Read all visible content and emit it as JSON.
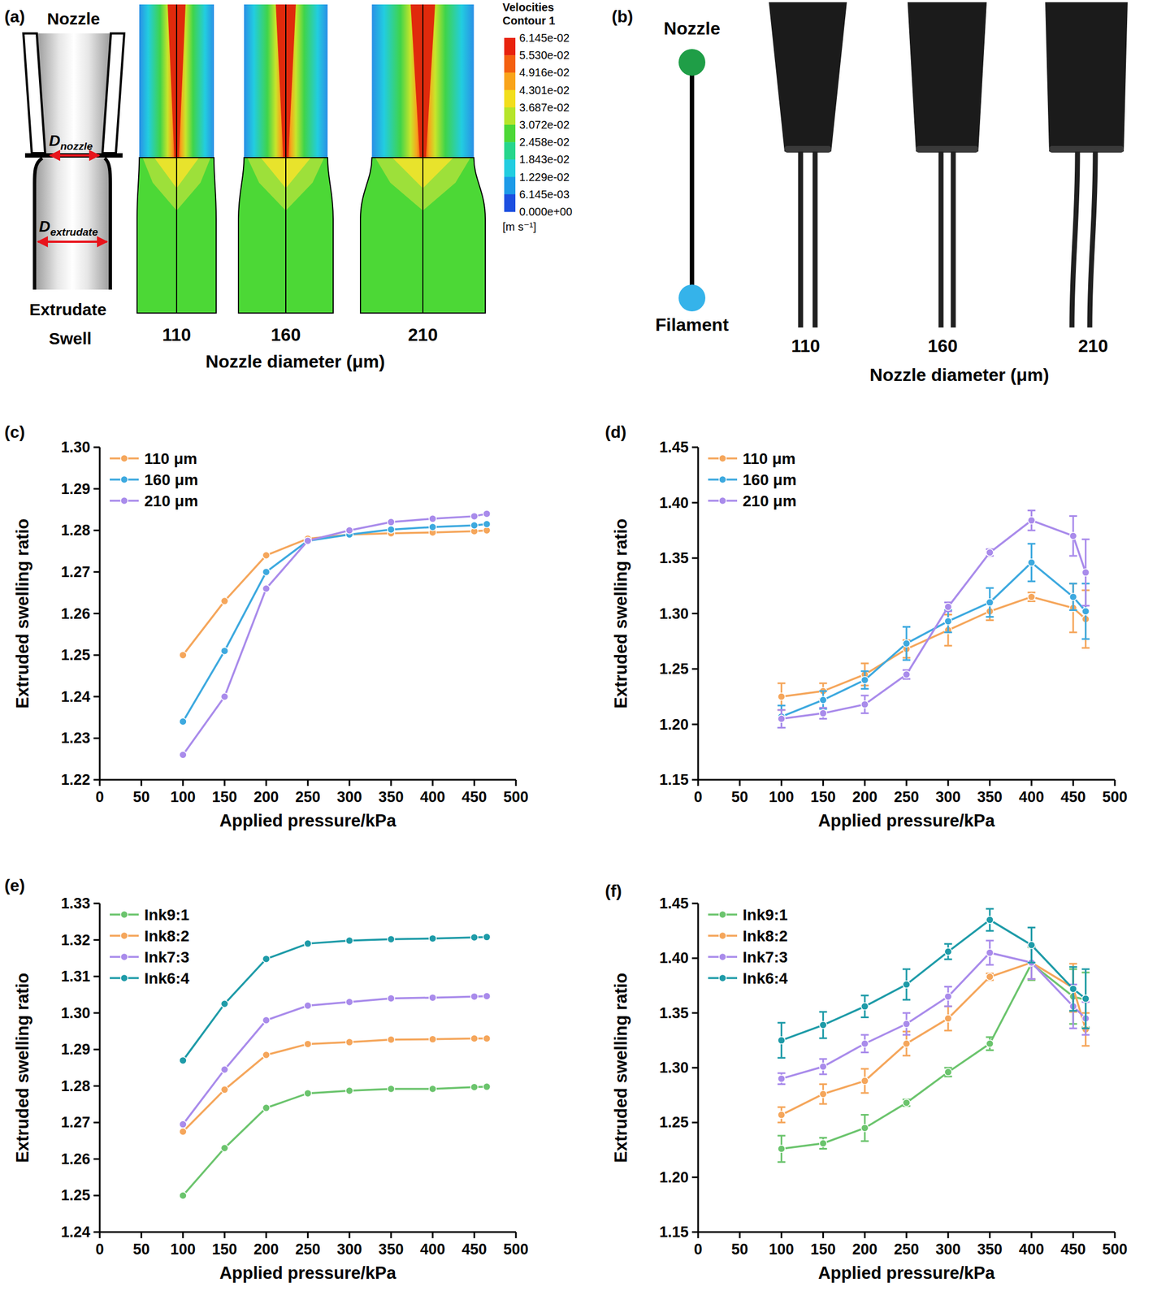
{
  "chart_data": [
    {
      "type": "line",
      "panel": "(c)",
      "x_label": "Applied pressure/kPa",
      "y_label": "Extruded swelling ratio",
      "x": [
        100,
        150,
        200,
        250,
        300,
        350,
        400,
        450,
        465
      ],
      "xlim": [
        0,
        500
      ],
      "xticks": [
        0,
        50,
        100,
        150,
        200,
        250,
        300,
        350,
        400,
        450,
        500
      ],
      "ylim": [
        1.22,
        1.3
      ],
      "yticks": [
        1.22,
        1.23,
        1.24,
        1.25,
        1.26,
        1.27,
        1.28,
        1.29,
        {
          "value": 1.3,
          "label": "1.30"
        }
      ],
      "grid": false,
      "legend": "upper left",
      "marker": "circle",
      "line_style": "solid",
      "series": [
        {
          "name": "110 μm",
          "color": "#f5a65b",
          "values": [
            1.25,
            1.263,
            1.274,
            1.278,
            1.279,
            1.2793,
            1.2795,
            1.2798,
            1.28
          ]
        },
        {
          "name": "160 μm",
          "color": "#3da9df",
          "values": [
            1.234,
            1.251,
            1.27,
            1.2775,
            1.279,
            1.2802,
            1.2808,
            1.2812,
            1.2815
          ]
        },
        {
          "name": "210 μm",
          "color": "#a98beb",
          "values": [
            1.226,
            1.24,
            1.266,
            1.2775,
            1.28,
            1.282,
            1.2828,
            1.2834,
            1.284
          ]
        }
      ]
    },
    {
      "type": "line",
      "panel": "(d)",
      "x_label": "Applied pressure/kPa",
      "y_label": "Extruded swelling ratio",
      "x": [
        100,
        150,
        200,
        250,
        300,
        350,
        400,
        450,
        465
      ],
      "xlim": [
        0,
        500
      ],
      "xticks": [
        0,
        50,
        100,
        150,
        200,
        250,
        300,
        350,
        400,
        450,
        500
      ],
      "ylim": [
        1.15,
        1.45
      ],
      "yticks": [
        1.15,
        {
          "value": 1.2,
          "label": "1.20"
        },
        1.25,
        {
          "value": 1.3,
          "label": "1.30"
        },
        1.35,
        {
          "value": 1.4,
          "label": "1.40"
        },
        1.45
      ],
      "grid": false,
      "legend": "upper left",
      "marker": "circle",
      "line_style": "solid",
      "series": [
        {
          "name": "110 μm",
          "color": "#f5a65b",
          "values": [
            1.225,
            1.23,
            1.245,
            1.268,
            1.285,
            1.302,
            1.315,
            1.305,
            1.295
          ],
          "errors": [
            0.012,
            0.007,
            0.01,
            0.008,
            0.014,
            0.008,
            0.004,
            0.022,
            0.026
          ]
        },
        {
          "name": "160 μm",
          "color": "#3da9df",
          "values": [
            1.207,
            1.222,
            1.24,
            1.273,
            1.293,
            1.31,
            1.346,
            1.315,
            1.302
          ],
          "errors": [
            0.01,
            0.008,
            0.008,
            0.015,
            0.01,
            0.013,
            0.017,
            0.012,
            0.025
          ]
        },
        {
          "name": "210 μm",
          "color": "#a98beb",
          "values": [
            1.205,
            1.21,
            1.218,
            1.245,
            1.306,
            1.355,
            1.384,
            1.37,
            1.337
          ],
          "errors": [
            0.008,
            0.005,
            0.008,
            0.004,
            0.004,
            0.003,
            0.009,
            0.018,
            0.03
          ]
        }
      ]
    },
    {
      "type": "line",
      "panel": "(e)",
      "x_label": "Applied pressure/kPa",
      "y_label": "Extruded swelling ratio",
      "x": [
        100,
        150,
        200,
        250,
        300,
        350,
        400,
        450,
        465
      ],
      "xlim": [
        0,
        500
      ],
      "xticks": [
        0,
        50,
        100,
        150,
        200,
        250,
        300,
        350,
        400,
        450,
        500
      ],
      "ylim": [
        1.24,
        1.33
      ],
      "yticks": [
        1.24,
        1.25,
        1.26,
        1.27,
        1.28,
        1.29,
        {
          "value": 1.3,
          "label": "1.30"
        },
        1.31,
        1.32,
        1.33
      ],
      "grid": false,
      "legend": "upper left",
      "marker": "circle",
      "line_style": "solid",
      "series": [
        {
          "name": "Ink9:1",
          "color": "#6bc46d",
          "values": [
            1.25,
            1.263,
            1.274,
            1.278,
            1.2787,
            1.2792,
            1.2792,
            1.2797,
            1.2798
          ]
        },
        {
          "name": "Ink8:2",
          "color": "#f5a65b",
          "values": [
            1.2675,
            1.279,
            1.2885,
            1.2915,
            1.292,
            1.2927,
            1.2928,
            1.293,
            1.293
          ]
        },
        {
          "name": "Ink7:3",
          "color": "#a98beb",
          "values": [
            1.2695,
            1.2845,
            1.298,
            1.302,
            1.303,
            1.304,
            1.3042,
            1.3045,
            1.3046
          ]
        },
        {
          "name": "Ink6:4",
          "color": "#1e9ba8",
          "values": [
            1.287,
            1.3025,
            1.3148,
            1.319,
            1.3198,
            1.3202,
            1.3204,
            1.3207,
            1.3208
          ]
        }
      ]
    },
    {
      "type": "line",
      "panel": "(f)",
      "x_label": "Applied pressure/kPa",
      "y_label": "Extruded swelling ratio",
      "x": [
        100,
        150,
        200,
        250,
        300,
        350,
        400,
        450,
        465
      ],
      "xlim": [
        0,
        500
      ],
      "xticks": [
        0,
        50,
        100,
        150,
        200,
        250,
        300,
        350,
        400,
        450,
        500
      ],
      "ylim": [
        1.15,
        1.45
      ],
      "yticks": [
        1.15,
        {
          "value": 1.2,
          "label": "1.20"
        },
        1.25,
        {
          "value": 1.3,
          "label": "1.30"
        },
        1.35,
        {
          "value": 1.4,
          "label": "1.40"
        },
        1.45
      ],
      "grid": false,
      "legend": "upper left",
      "marker": "circle",
      "line_style": "solid",
      "series": [
        {
          "name": "Ink9:1",
          "color": "#6bc46d",
          "values": [
            1.226,
            1.231,
            1.245,
            1.268,
            1.296,
            1.322,
            1.395,
            1.365,
            1.362
          ],
          "errors": [
            0.012,
            0.005,
            0.012,
            0.003,
            0.004,
            0.006,
            0.015,
            0.025,
            0.025
          ]
        },
        {
          "name": "Ink8:2",
          "color": "#f5a65b",
          "values": [
            1.257,
            1.276,
            1.288,
            1.322,
            1.345,
            1.383,
            1.396,
            1.373,
            1.335
          ],
          "errors": [
            0.007,
            0.009,
            0.011,
            0.011,
            0.011,
            0.003,
            0.015,
            0.022,
            0.015
          ]
        },
        {
          "name": "Ink7:3",
          "color": "#a98beb",
          "values": [
            1.29,
            1.301,
            1.322,
            1.34,
            1.365,
            1.405,
            1.396,
            1.356,
            1.345
          ],
          "errors": [
            0.005,
            0.007,
            0.008,
            0.01,
            0.009,
            0.011,
            0.015,
            0.02,
            0.015
          ]
        },
        {
          "name": "Ink6:4",
          "color": "#1e9ba8",
          "values": [
            1.325,
            1.339,
            1.356,
            1.376,
            1.406,
            1.435,
            1.412,
            1.372,
            1.363
          ],
          "errors": [
            0.016,
            0.012,
            0.01,
            0.014,
            0.007,
            0.01,
            0.016,
            0.02,
            0.027
          ]
        }
      ]
    }
  ],
  "panels": {
    "a": {
      "label": "(a)",
      "nozzle": "Nozzle",
      "d_nozzle": {
        "base": "D",
        "sub": "nozzle"
      },
      "d_extrudate": {
        "base": "D",
        "sub": "extrudate"
      },
      "swell": [
        "Extrudate",
        "Swell"
      ],
      "diameters": [
        110,
        160,
        210
      ],
      "axis_title": "Nozzle diameter (μm)",
      "colorbar": {
        "title": [
          "Velocities",
          "Contour 1"
        ],
        "labels": [
          "6.145e-02",
          "5.530e-02",
          "4.916e-02",
          "4.301e-02",
          "3.687e-02",
          "3.072e-02",
          "2.458e-02",
          "1.843e-02",
          "1.229e-02",
          "6.145e-03",
          "0.000e+00"
        ],
        "unit": "[m s⁻¹]"
      }
    },
    "b": {
      "label": "(b)",
      "nozzle": "Nozzle",
      "filament": "Filament",
      "diameters": [
        110,
        160,
        210
      ],
      "axis_title": "Nozzle diameter (μm)"
    }
  }
}
